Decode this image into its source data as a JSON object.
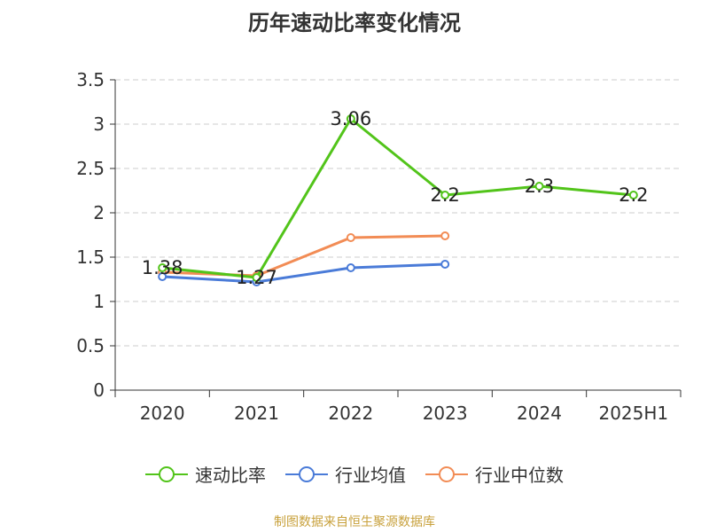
{
  "chart_data": {
    "type": "line",
    "title": "历年速动比率变化情况",
    "categories": [
      "2020",
      "2021",
      "2022",
      "2023",
      "2024",
      "2025H1"
    ],
    "ylim": [
      0,
      3.5
    ],
    "yticks": [
      "0",
      "0.5",
      "1",
      "1.5",
      "2",
      "2.5",
      "3",
      "3.5"
    ],
    "grid": true,
    "legend_position": "bottom",
    "series": [
      {
        "name": "速动比率",
        "color": "#52c41a",
        "values": [
          1.38,
          1.27,
          3.06,
          2.2,
          2.3,
          2.2
        ],
        "labels": [
          "1.38",
          "1.27",
          "3.06",
          "2.2",
          "2.3",
          "2.2"
        ]
      },
      {
        "name": "行业均值",
        "color": "#4a7bd8",
        "values": [
          1.28,
          1.22,
          1.38,
          1.42,
          null,
          null
        ]
      },
      {
        "name": "行业中位数",
        "color": "#f28c55",
        "values": [
          1.33,
          1.29,
          1.72,
          1.74,
          null,
          null
        ]
      }
    ]
  },
  "source": "制图数据来自恒生聚源数据库"
}
